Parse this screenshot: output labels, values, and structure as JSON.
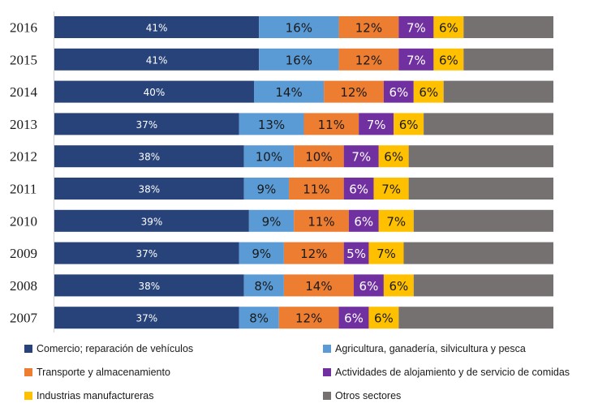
{
  "chart_data": {
    "type": "bar",
    "orientation": "horizontal",
    "stacked": true,
    "normalized": true,
    "categories": [
      "2016",
      "2015",
      "2014",
      "2013",
      "2012",
      "2011",
      "2010",
      "2009",
      "2008",
      "2007"
    ],
    "series": [
      {
        "name": "Comercio; reparación de vehículos",
        "color": "#27437A",
        "values": [
          41,
          41,
          40,
          37,
          38,
          38,
          39,
          37,
          38,
          37
        ],
        "labels": [
          "41%",
          "41%",
          "40%",
          "37%",
          "38%",
          "38%",
          "39%",
          "37%",
          "38%",
          "37%"
        ]
      },
      {
        "name": "Agricultura, ganadería, silvicultura y pesca",
        "color": "#5B9BD5",
        "values": [
          16,
          16,
          14,
          13,
          10,
          9,
          9,
          9,
          8,
          8
        ],
        "labels": [
          "16%",
          "16%",
          "14%",
          "13%",
          "10%",
          "9%",
          "9%",
          "9%",
          "8%",
          "8%"
        ]
      },
      {
        "name": "Transporte y almacenamiento",
        "color": "#ED7D31",
        "values": [
          12,
          12,
          12,
          11,
          10,
          11,
          11,
          12,
          14,
          12
        ],
        "labels": [
          "12%",
          "12%",
          "12%",
          "11%",
          "10%",
          "11%",
          "11%",
          "12%",
          "14%",
          "12%"
        ]
      },
      {
        "name": "Actividades de alojamiento y de servicio de comidas",
        "color": "#7030A0",
        "values": [
          7,
          7,
          6,
          7,
          7,
          6,
          6,
          5,
          6,
          6
        ],
        "labels": [
          "7%",
          "7%",
          "6%",
          "7%",
          "7%",
          "6%",
          "6%",
          "5%",
          "6%",
          "6%"
        ]
      },
      {
        "name": "Industrias manufactureras",
        "color": "#FFC000",
        "values": [
          6,
          6,
          6,
          6,
          6,
          7,
          7,
          7,
          6,
          6
        ],
        "labels": [
          "6%",
          "6%",
          "6%",
          "6%",
          "6%",
          "7%",
          "7%",
          "7%",
          "6%",
          "6%"
        ]
      },
      {
        "name": "Otros sectores",
        "color": "#767171",
        "values": [
          18,
          18,
          22,
          26,
          29,
          29,
          28,
          30,
          28,
          31
        ],
        "labels": []
      }
    ],
    "xlim": [
      0,
      100
    ],
    "grid": false,
    "legend_position": "bottom"
  }
}
